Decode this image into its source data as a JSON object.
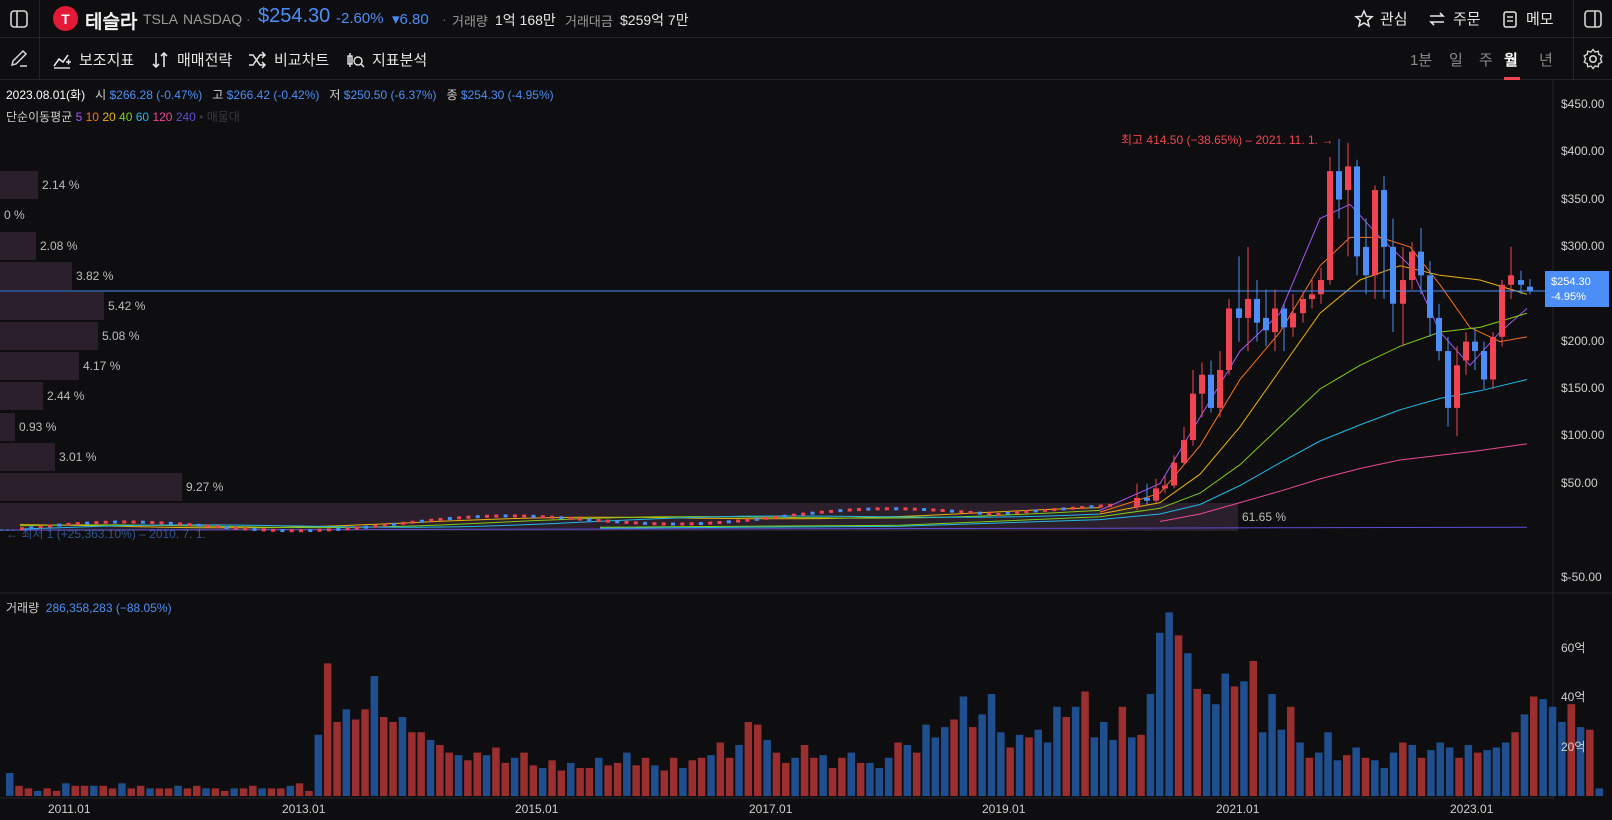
{
  "header": {
    "logo_letter": "T",
    "name": "테슬라",
    "ticker": "TSLA",
    "exchange": "NASDAQ",
    "dot": "·",
    "price": "$254.30",
    "change_pct": "-2.60%",
    "change_abs": "▾6.80",
    "volume_label": "거래량",
    "volume_value": "1억 168만",
    "amount_label": "거래대금",
    "amount_value": "$259억 7만",
    "watch_label": "관심",
    "order_label": "주문",
    "memo_label": "메모"
  },
  "toolbar": {
    "indicators": "보조지표",
    "strategy": "매매전략",
    "compare": "비교차트",
    "analysis": "지표분석",
    "periods": [
      "1분",
      "일",
      "주",
      "월",
      "년"
    ],
    "active_period": "월"
  },
  "ohlc": {
    "date": "2023.08.01(화)",
    "open_label": "시",
    "open": "$266.28 (-0.47%)",
    "high_label": "고",
    "high": "$266.42 (-0.42%)",
    "low_label": "저",
    "low": "$250.50 (-6.37%)",
    "close_label": "종",
    "close": "$254.30 (-4.95%)"
  },
  "ma": {
    "label": "단순이동평균",
    "periods": [
      "5",
      "10",
      "20",
      "40",
      "60",
      "120",
      "240"
    ],
    "colors": [
      "#a855f7",
      "#f97316",
      "#eab308",
      "#84cc16",
      "#22b8e8",
      "#ec4899",
      "#5b4fd6"
    ],
    "extra": "• 매물대"
  },
  "price_axis": [
    "$450.00",
    "$400.00",
    "$350.00",
    "$300.00",
    "$250.00",
    "$200.00",
    "$150.00",
    "$100.00",
    "$50.00",
    "$-50.00"
  ],
  "current_badge": {
    "price": "$254.30",
    "change": "-4.95%"
  },
  "annotations": {
    "high": "최고 414.50 (−38.65%) – 2021. 11. 1. →",
    "low": "← 최저 1 (+25,363.10%) – 2010. 7. 1."
  },
  "volume_profile": [
    "2.14 %",
    "0 %",
    "2.08 %",
    "3.82 %",
    "5.42 %",
    "5.08 %",
    "4.17 %",
    "2.44 %",
    "0.93 %",
    "3.01 %",
    "9.27 %",
    "61.65 %"
  ],
  "volume": {
    "label": "거래량",
    "value": "286,358,283 (−88.05%)",
    "axis": [
      "60억",
      "40억",
      "20억"
    ]
  },
  "time_axis": [
    "2011.01",
    "2013.01",
    "2015.01",
    "2017.01",
    "2019.01",
    "2021.01",
    "2023.01"
  ],
  "colors": {
    "up": "#f04452",
    "down": "#4c8ef7",
    "up_volume": "#9b2f2f",
    "down_volume": "#1f4f8f",
    "background": "#0e0e10"
  },
  "chart_data": {
    "type": "candlestick",
    "frequency": "monthly",
    "price_range": [
      -50,
      450
    ],
    "series": [
      {
        "name": "TSLA",
        "x": [
          "2020.06",
          "2020.08",
          "2020.10",
          "2020.12",
          "2021.02",
          "2021.04",
          "2021.06",
          "2021.08",
          "2021.11",
          "2022.01",
          "2022.03",
          "2022.05",
          "2022.07",
          "2022.09",
          "2022.12",
          "2023.03",
          "2023.06",
          "2023.08"
        ],
        "close": [
          72,
          165,
          129,
          235,
          225,
          237,
          226,
          245,
          380,
          312,
          360,
          252,
          297,
          265,
          123,
          207,
          261,
          254
        ]
      }
    ]
  }
}
